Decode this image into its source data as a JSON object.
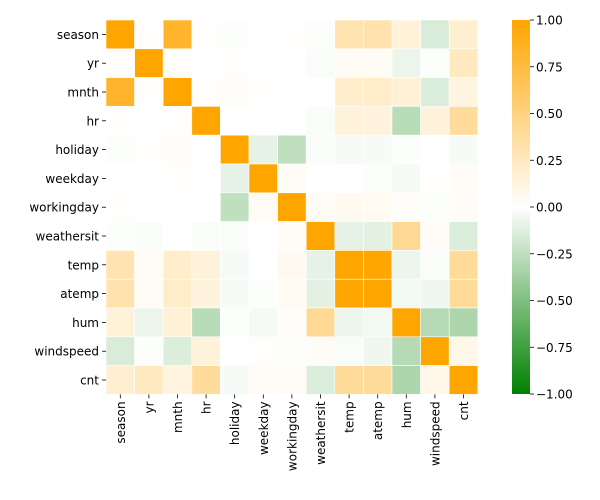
{
  "chart_data": {
    "type": "heatmap",
    "title": "",
    "xlabel": "",
    "ylabel": "",
    "variables": [
      "season",
      "yr",
      "mnth",
      "hr",
      "holiday",
      "weekday",
      "workingday",
      "weathersit",
      "temp",
      "atemp",
      "hum",
      "windspeed",
      "cnt"
    ],
    "matrix": [
      [
        1.0,
        0.01,
        0.83,
        0.01,
        -0.01,
        0.0,
        0.01,
        -0.01,
        0.31,
        0.32,
        0.15,
        -0.15,
        0.18
      ],
      [
        0.01,
        1.0,
        0.01,
        0.0,
        0.01,
        0.0,
        0.0,
        -0.02,
        0.04,
        0.04,
        -0.08,
        -0.01,
        0.25
      ],
      [
        0.83,
        0.01,
        1.0,
        0.01,
        0.02,
        0.01,
        0.0,
        0.0,
        0.2,
        0.21,
        0.16,
        -0.14,
        0.12
      ],
      [
        0.01,
        0.0,
        0.01,
        1.0,
        0.0,
        0.0,
        0.0,
        -0.02,
        0.14,
        0.13,
        -0.28,
        0.14,
        0.39
      ],
      [
        -0.01,
        0.01,
        0.02,
        0.0,
        1.0,
        -0.1,
        -0.25,
        -0.02,
        -0.03,
        -0.03,
        -0.01,
        0.0,
        -0.03
      ],
      [
        0.0,
        0.0,
        0.01,
        0.0,
        -0.1,
        1.0,
        0.04,
        0.0,
        0.0,
        -0.01,
        -0.04,
        0.01,
        0.03
      ],
      [
        0.01,
        0.0,
        0.0,
        0.0,
        -0.25,
        0.04,
        1.0,
        0.04,
        0.06,
        0.05,
        0.02,
        -0.01,
        0.03
      ],
      [
        -0.01,
        -0.02,
        0.0,
        -0.02,
        -0.02,
        0.0,
        0.04,
        1.0,
        -0.1,
        -0.11,
        0.42,
        0.03,
        -0.14
      ],
      [
        0.31,
        0.04,
        0.2,
        0.14,
        -0.03,
        0.0,
        0.06,
        -0.1,
        1.0,
        0.99,
        -0.07,
        -0.02,
        0.4
      ],
      [
        0.32,
        0.04,
        0.21,
        0.13,
        -0.03,
        -0.01,
        0.05,
        -0.11,
        0.99,
        1.0,
        -0.05,
        -0.06,
        0.4
      ],
      [
        0.15,
        -0.08,
        0.16,
        -0.28,
        -0.01,
        -0.04,
        0.02,
        0.42,
        -0.07,
        -0.05,
        1.0,
        -0.29,
        -0.32
      ],
      [
        -0.15,
        -0.01,
        -0.14,
        0.14,
        0.0,
        0.01,
        -0.01,
        0.03,
        -0.02,
        -0.06,
        -0.29,
        1.0,
        0.09
      ],
      [
        0.18,
        0.25,
        0.12,
        0.39,
        -0.03,
        0.03,
        0.03,
        -0.14,
        0.4,
        0.4,
        -0.32,
        0.09,
        1.0
      ]
    ],
    "vmin": -1.0,
    "vmax": 1.0,
    "colorbar_ticks": [
      "1.00",
      "0.75",
      "0.50",
      "0.25",
      "0.00",
      "−0.25",
      "−0.50",
      "−0.75",
      "−1.00"
    ],
    "colors": {
      "negative_end": "#008000",
      "center": "#ffffff",
      "positive_end": "#ffa500",
      "cell_border": "#ffffff"
    },
    "grid": false,
    "legend": "colorbar-right"
  }
}
